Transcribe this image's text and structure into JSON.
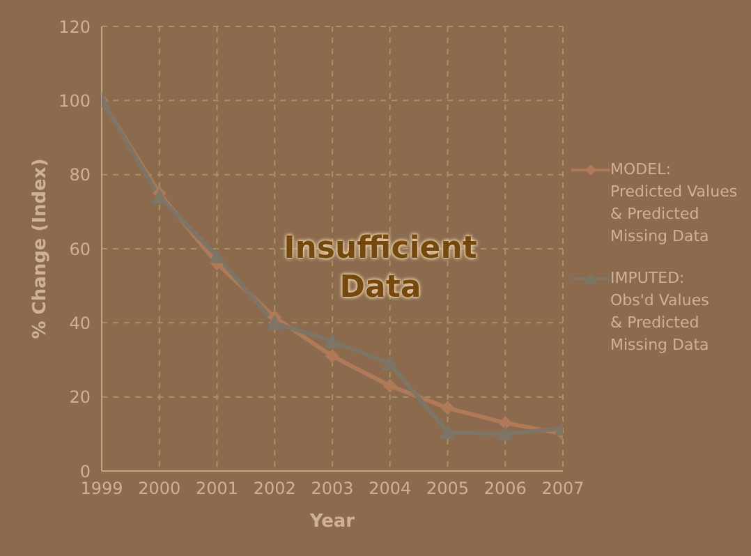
{
  "chart_data": {
    "type": "line",
    "xlabel": "Year",
    "ylabel": "% Change (Index)",
    "x": [
      1999,
      2000,
      2001,
      2002,
      2003,
      2004,
      2005,
      2006,
      2007
    ],
    "xlim": [
      1999,
      2007
    ],
    "xticks": [
      1999,
      2000,
      2001,
      2002,
      2003,
      2004,
      2005,
      2006,
      2007
    ],
    "ylim": [
      0,
      120
    ],
    "yticks": [
      0,
      20,
      40,
      60,
      80,
      100,
      120
    ],
    "grid": true,
    "legend": "right",
    "annotations": [
      "Insufficient\nData"
    ],
    "series": [
      {
        "name": "MODEL:\nPredicted Values\n& Predicted\nMissing Data",
        "color": "#b07a58",
        "marker": "diamond",
        "values": [
          100,
          75,
          56,
          41.5,
          31,
          23,
          17,
          13,
          10
        ]
      },
      {
        "name": "IMPUTED:\nObs'd Values\n& Predicted\nMissing Data",
        "color": "#7f7566",
        "marker": "triangle",
        "values": [
          100,
          74,
          58,
          40,
          35,
          29,
          10.5,
          10,
          11.5
        ]
      }
    ]
  }
}
